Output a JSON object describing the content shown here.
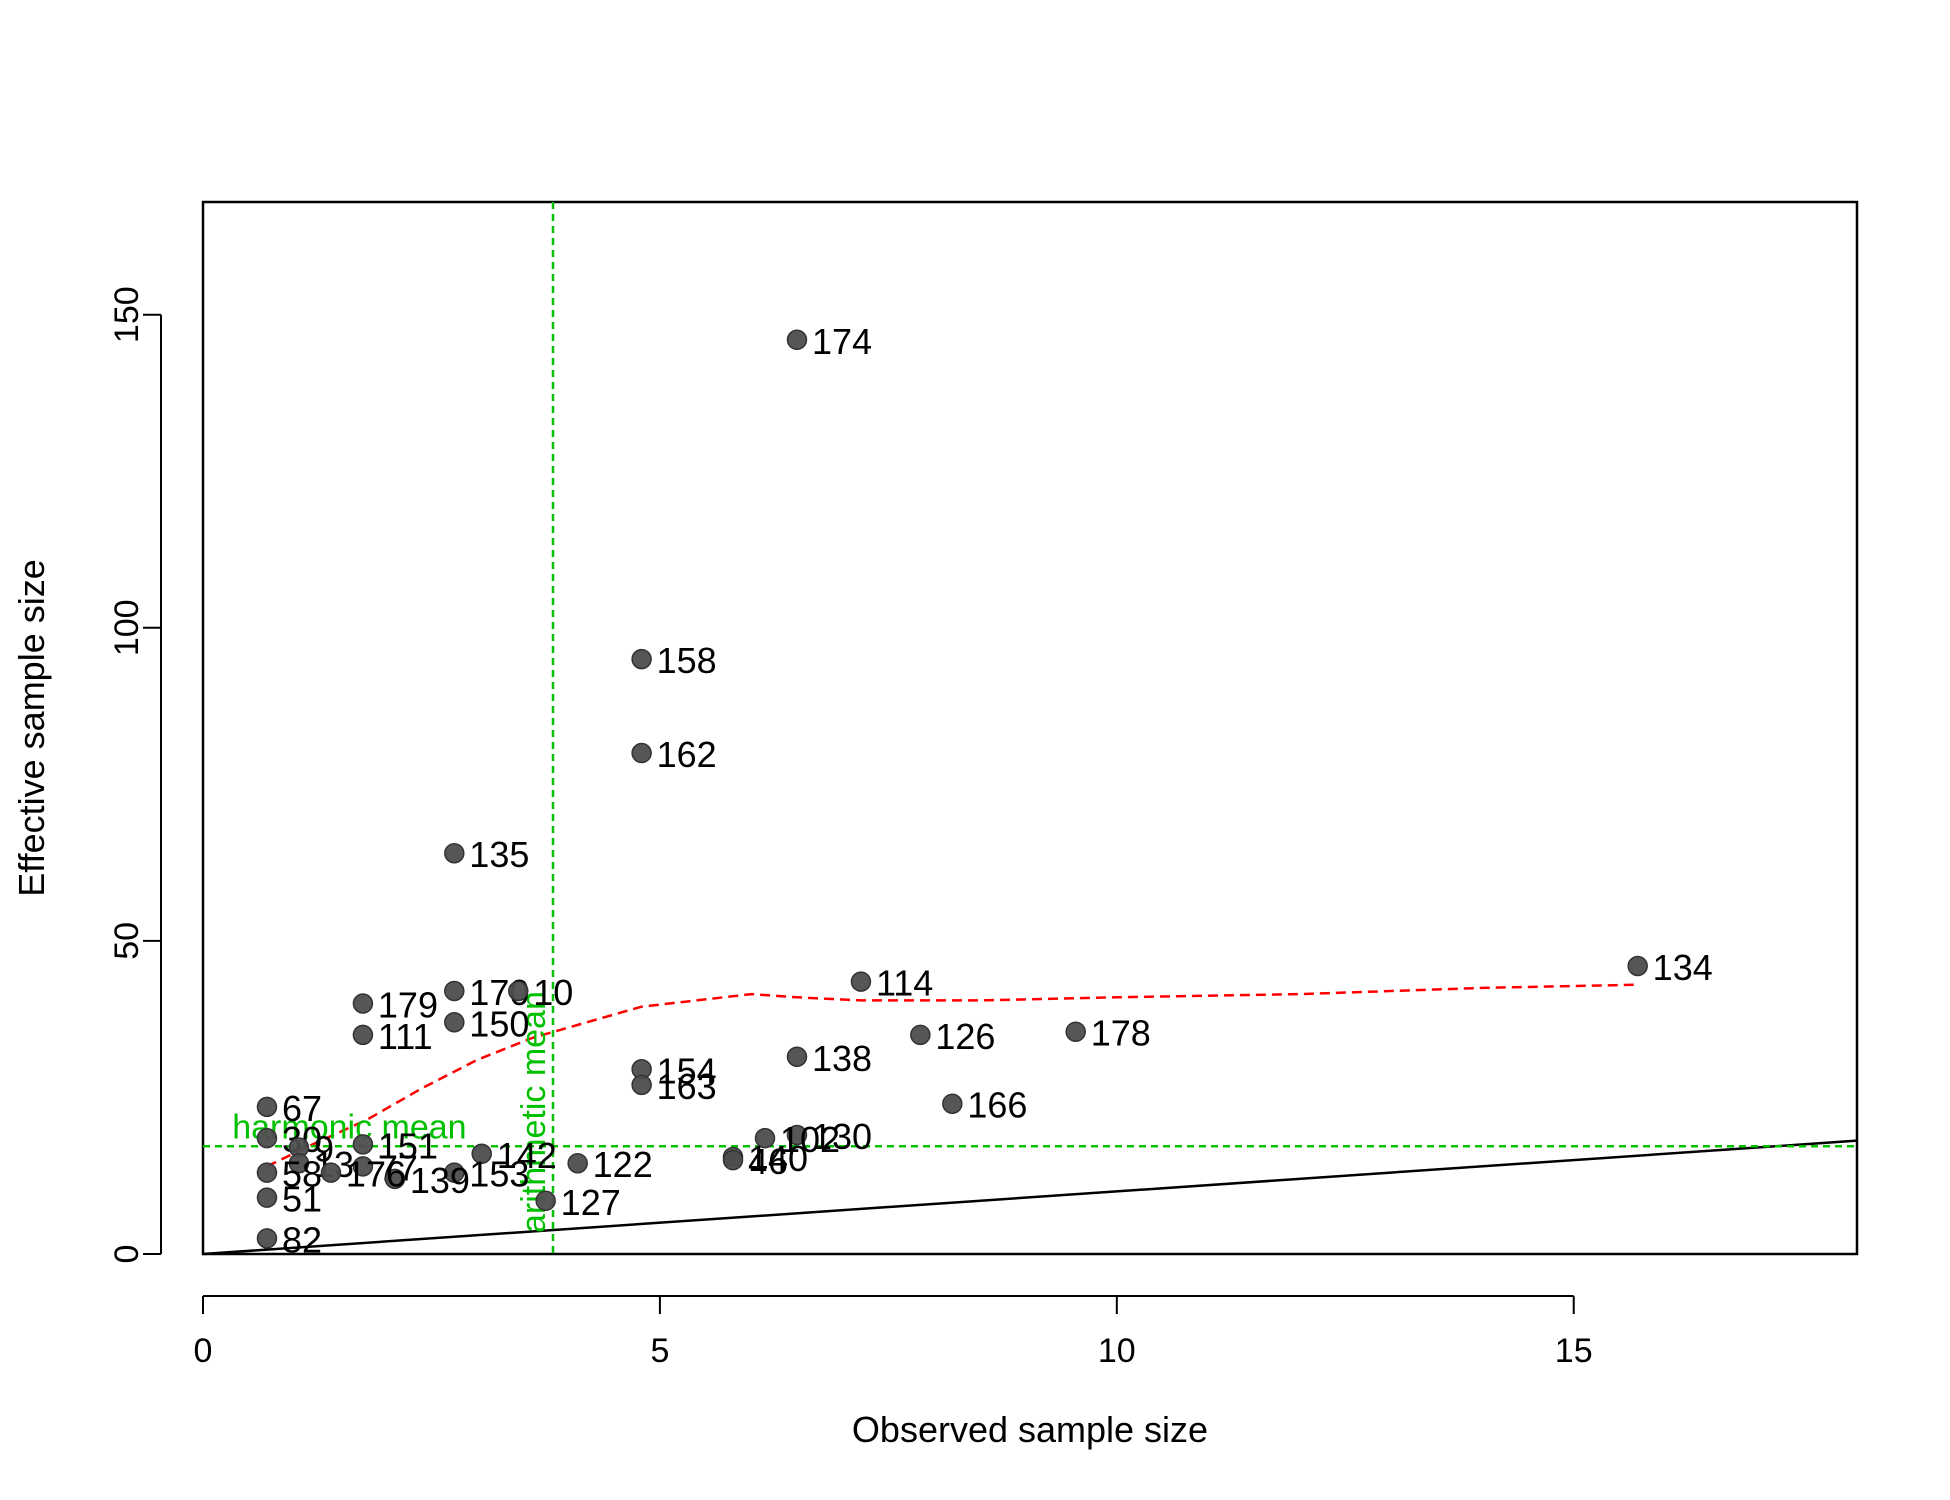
{
  "chart_data": {
    "type": "scatter",
    "xlabel": "Observed sample size",
    "ylabel": "Effective sample size",
    "xlim": [
      0,
      18.1
    ],
    "ylim": [
      0,
      168
    ],
    "xticks": [
      0,
      5,
      10,
      15
    ],
    "yticks": [
      0,
      50,
      100,
      150
    ],
    "grid": false,
    "colors": {
      "points": "#4d4d4d",
      "reference": "#00c000",
      "smooth": "#ff0000",
      "identity": "#000000"
    },
    "points": [
      {
        "label": "174",
        "x": 6.5,
        "y": 146
      },
      {
        "label": "158",
        "x": 4.8,
        "y": 95
      },
      {
        "label": "162",
        "x": 4.8,
        "y": 80
      },
      {
        "label": "135",
        "x": 2.75,
        "y": 64
      },
      {
        "label": "114",
        "x": 7.2,
        "y": 43.5
      },
      {
        "label": "134",
        "x": 15.7,
        "y": 46
      },
      {
        "label": "170",
        "x": 2.75,
        "y": 42
      },
      {
        "label": "10",
        "x": 3.45,
        "y": 42
      },
      {
        "label": "179",
        "x": 1.75,
        "y": 40
      },
      {
        "label": "150",
        "x": 2.75,
        "y": 37
      },
      {
        "label": "111",
        "x": 1.75,
        "y": 35
      },
      {
        "label": "126",
        "x": 7.85,
        "y": 35
      },
      {
        "label": "178",
        "x": 9.55,
        "y": 35.5
      },
      {
        "label": "138",
        "x": 6.5,
        "y": 31.5
      },
      {
        "label": "154",
        "x": 4.8,
        "y": 29.5
      },
      {
        "label": "163",
        "x": 4.8,
        "y": 27
      },
      {
        "label": "166",
        "x": 8.2,
        "y": 24
      },
      {
        "label": "67",
        "x": 0.7,
        "y": 23.5
      },
      {
        "label": "30",
        "x": 0.7,
        "y": 18.5
      },
      {
        "label": "130",
        "x": 6.5,
        "y": 19
      },
      {
        "label": "102",
        "x": 6.15,
        "y": 18.5
      },
      {
        "label": "151",
        "x": 1.75,
        "y": 17.5
      },
      {
        "label": "9",
        "x": 1.05,
        "y": 17
      },
      {
        "label": "142",
        "x": 3.05,
        "y": 16
      },
      {
        "label": "140",
        "x": 5.8,
        "y": 15.5
      },
      {
        "label": "46",
        "x": 5.8,
        "y": 15
      },
      {
        "label": "122",
        "x": 4.1,
        "y": 14.5
      },
      {
        "label": "13",
        "x": 1.05,
        "y": 14.5
      },
      {
        "label": "77",
        "x": 1.75,
        "y": 14
      },
      {
        "label": "153",
        "x": 2.75,
        "y": 13
      },
      {
        "label": "139",
        "x": 2.1,
        "y": 12
      },
      {
        "label": "58",
        "x": 0.7,
        "y": 13
      },
      {
        "label": "176",
        "x": 1.4,
        "y": 13
      },
      {
        "label": "51",
        "x": 0.7,
        "y": 9
      },
      {
        "label": "127",
        "x": 3.75,
        "y": 8.5
      },
      {
        "label": "82",
        "x": 0.7,
        "y": 2.5
      }
    ],
    "identity_line": {
      "x": [
        0,
        18.1
      ],
      "y": [
        0,
        18.1
      ]
    },
    "smooth_line": {
      "x": [
        0.7,
        1.2,
        1.8,
        2.4,
        3.0,
        3.6,
        4.2,
        4.8,
        5.4,
        6.0,
        6.5,
        7.2,
        8.5,
        10.0,
        12.0,
        14.0,
        15.7
      ],
      "y": [
        14,
        17.5,
        21.5,
        26.5,
        31,
        34.5,
        37,
        39.5,
        40.5,
        41.5,
        41,
        40.5,
        40.5,
        41,
        41.5,
        42.5,
        43
      ]
    },
    "harmonic_mean": {
      "label": "harmonic mean",
      "value": 17.2
    },
    "arithmetic_mean": {
      "label": "arithmetic mean",
      "value": 3.83
    }
  }
}
